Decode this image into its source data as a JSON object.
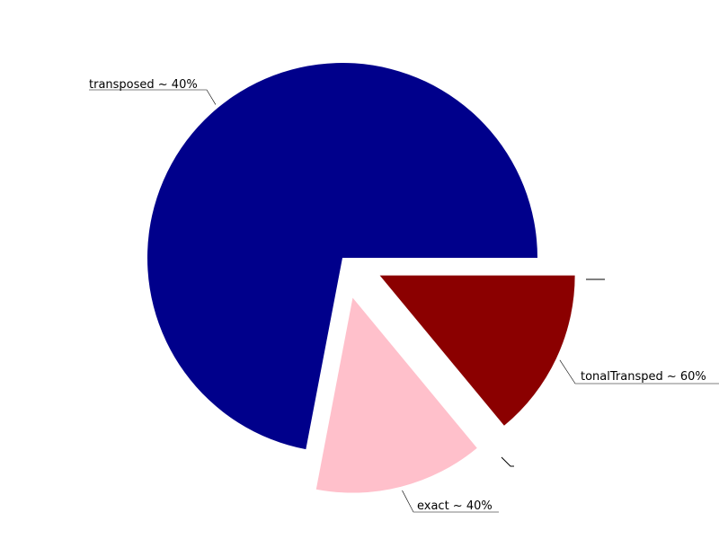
{
  "chart_data": {
    "type": "pie",
    "slices": [
      {
        "label": "transposed ~ 40%",
        "value": 72,
        "color": "#00008b",
        "exploded": false
      },
      {
        "label": "exact ~ 40%",
        "value": 14,
        "color": "#ffc0cb",
        "exploded": true
      },
      {
        "label": "tonalTransped ~ 60%",
        "value": 14,
        "color": "#8b0000",
        "exploded": true
      }
    ],
    "start_angle_deg": 0,
    "direction": "counterclockwise",
    "legend": "none",
    "title": ""
  }
}
